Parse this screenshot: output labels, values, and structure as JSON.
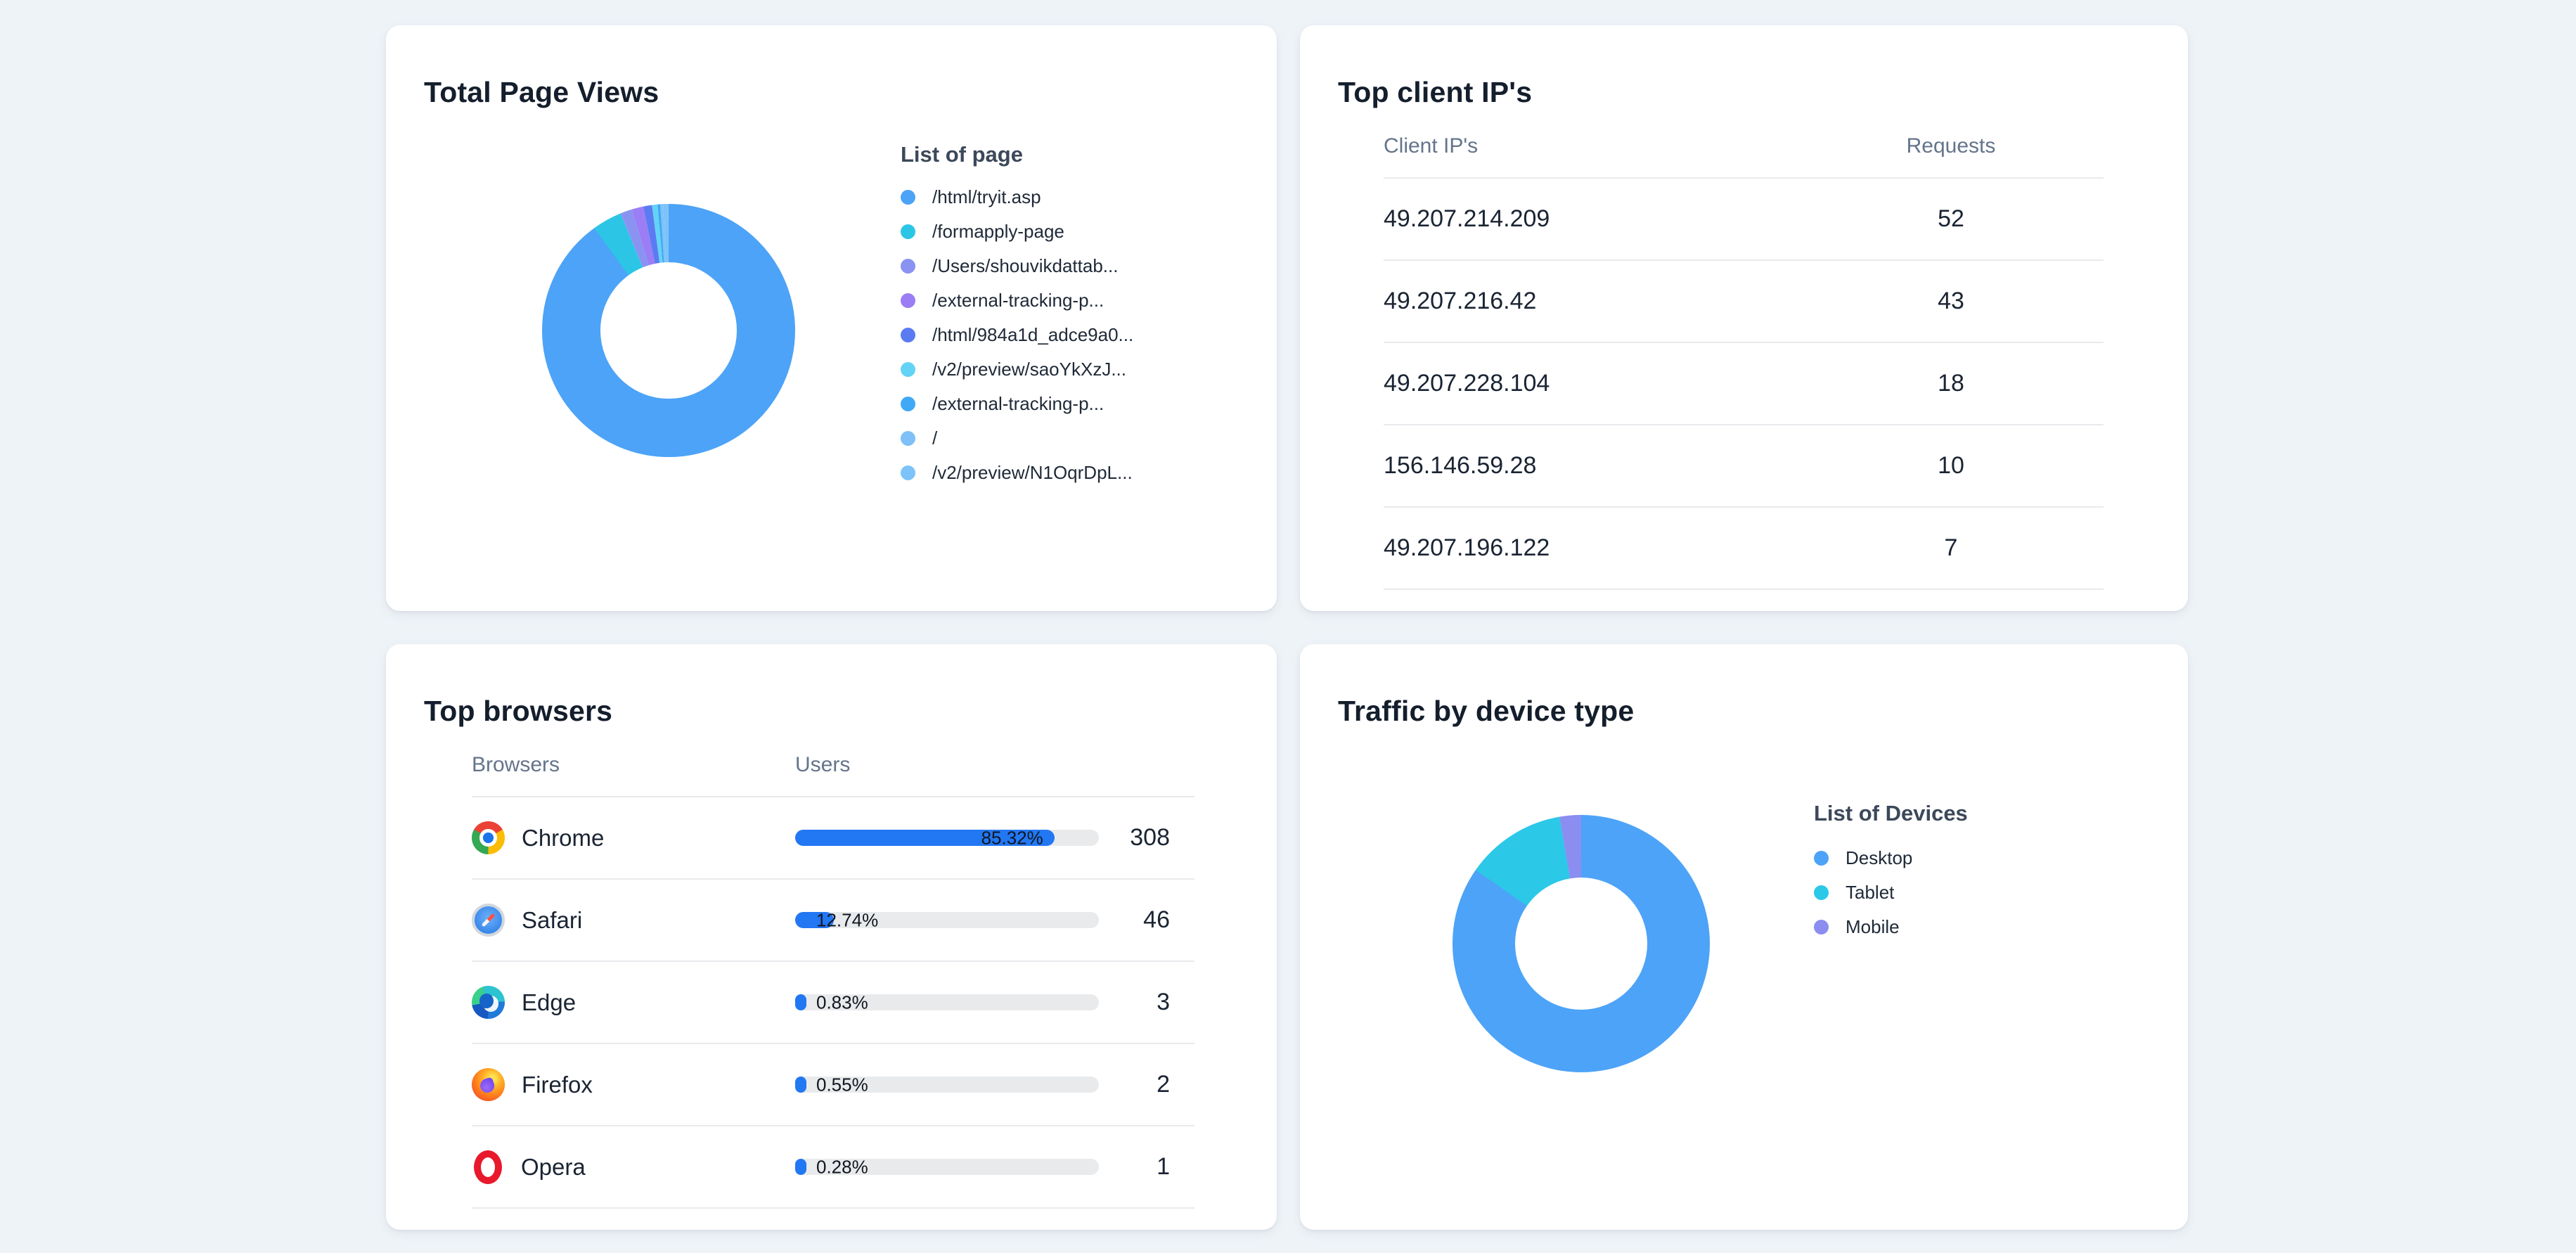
{
  "page": {
    "background": "#eef3f8",
    "card_background": "#ffffff"
  },
  "cards": {
    "page_views": {
      "title": "Total Page Views",
      "legend_title": "List of page",
      "labels": [
        "/html/tryit.asp",
        "/formapply-page",
        "/Users/shouvikdattab...",
        "/external-tracking-p...",
        "/html/984a1d_adce9a0...",
        "/v2/preview/saoYkXzJ...",
        "/external-tracking-p...",
        "/",
        "/v2/preview/N1OqrDpL..."
      ],
      "values_percent": [
        90.0,
        3.8,
        1.5,
        1.5,
        1.1,
        0.7,
        0.35,
        0.35,
        0.7
      ],
      "colors": [
        "#4da3f7",
        "#2cc5e6",
        "#8a93f2",
        "#9b7df5",
        "#5a7bf2",
        "#62d3f5",
        "#3fa9f5",
        "#7ec0f7",
        "#7cc3fa"
      ]
    },
    "client_ips": {
      "title": "Top client IP's",
      "col_ip": "Client IP's",
      "col_requests": "Requests",
      "rows": [
        {
          "ip": "49.207.214.209",
          "requests": "52"
        },
        {
          "ip": "49.207.216.42",
          "requests": "43"
        },
        {
          "ip": "49.207.228.104",
          "requests": "18"
        },
        {
          "ip": "156.146.59.28",
          "requests": "10"
        },
        {
          "ip": "49.207.196.122",
          "requests": "7"
        }
      ]
    },
    "browsers": {
      "title": "Top browsers",
      "col_browser": "Browsers",
      "col_users": "Users",
      "bar_color": "#2277f3",
      "track_color": "#e9eaec",
      "rows": [
        {
          "name": "Chrome",
          "icon": "chrome-icon",
          "percent": 85.32,
          "percent_label": "85.32%",
          "users": "308"
        },
        {
          "name": "Safari",
          "icon": "safari-icon",
          "percent": 12.74,
          "percent_label": "12.74%",
          "users": "46"
        },
        {
          "name": "Edge",
          "icon": "edge-icon",
          "percent": 0.83,
          "percent_label": "0.83%",
          "users": "3"
        },
        {
          "name": "Firefox",
          "icon": "firefox-icon",
          "percent": 0.55,
          "percent_label": "0.55%",
          "users": "2"
        },
        {
          "name": "Opera",
          "icon": "opera-icon",
          "percent": 0.28,
          "percent_label": "0.28%",
          "users": "1"
        }
      ]
    },
    "devices": {
      "title": "Traffic by device type",
      "legend_title": "List of Devices",
      "labels": [
        "Desktop",
        "Tablet",
        "Mobile"
      ],
      "values_percent": [
        84.7,
        12.6,
        2.7
      ],
      "colors": [
        "#4da3f7",
        "#2bc8e8",
        "#8b8df0"
      ]
    }
  },
  "chart_data": [
    {
      "type": "pie",
      "title": "Total Page Views",
      "labels": [
        "/html/tryit.asp",
        "/formapply-page",
        "/Users/shouvikdattab...",
        "/external-tracking-p...",
        "/html/984a1d_adce9a0...",
        "/v2/preview/saoYkXzJ...",
        "/external-tracking-p...",
        "/",
        "/v2/preview/N1OqrDpL..."
      ],
      "values": [
        90.0,
        3.8,
        1.5,
        1.5,
        1.1,
        0.7,
        0.35,
        0.35,
        0.7
      ],
      "value_unit": "percent-estimated",
      "legend_position": "right",
      "donut": true
    },
    {
      "type": "table",
      "title": "Top client IP's",
      "columns": [
        "Client IP's",
        "Requests"
      ],
      "rows": [
        [
          "49.207.214.209",
          52
        ],
        [
          "49.207.216.42",
          43
        ],
        [
          "49.207.228.104",
          18
        ],
        [
          "156.146.59.28",
          10
        ],
        [
          "49.207.196.122",
          7
        ]
      ]
    },
    {
      "type": "bar",
      "title": "Top browsers",
      "categories": [
        "Chrome",
        "Safari",
        "Edge",
        "Firefox",
        "Opera"
      ],
      "values": [
        308,
        46,
        3,
        2,
        1
      ],
      "percent_labels": [
        "85.32%",
        "12.74%",
        "0.83%",
        "0.55%",
        "0.28%"
      ],
      "xlabel": "Browsers",
      "ylabel": "Users"
    },
    {
      "type": "pie",
      "title": "Traffic by device type",
      "labels": [
        "Desktop",
        "Tablet",
        "Mobile"
      ],
      "values": [
        84.7,
        12.6,
        2.7
      ],
      "value_unit": "percent-estimated",
      "legend_position": "right",
      "donut": true
    }
  ]
}
